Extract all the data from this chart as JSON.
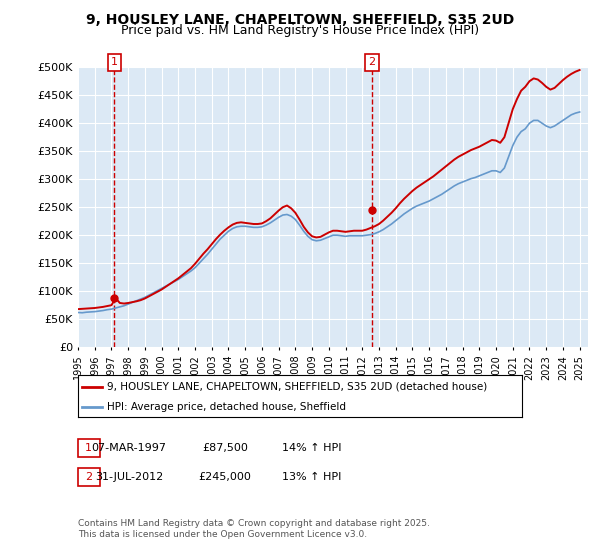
{
  "title_line1": "9, HOUSLEY LANE, CHAPELTOWN, SHEFFIELD, S35 2UD",
  "title_line2": "Price paid vs. HM Land Registry's House Price Index (HPI)",
  "bg_color": "#dce9f5",
  "plot_bg_color": "#dce9f5",
  "fig_bg_color": "#ffffff",
  "ylim": [
    0,
    500000
  ],
  "yticks": [
    0,
    50000,
    100000,
    150000,
    200000,
    250000,
    300000,
    350000,
    400000,
    450000,
    500000
  ],
  "ytick_labels": [
    "£0",
    "£50K",
    "£100K",
    "£150K",
    "£200K",
    "£250K",
    "£300K",
    "£350K",
    "£400K",
    "£450K",
    "£500K"
  ],
  "xlim_start": 1995.0,
  "xlim_end": 2025.5,
  "xticks": [
    1995,
    1996,
    1997,
    1998,
    1999,
    2000,
    2001,
    2002,
    2003,
    2004,
    2005,
    2006,
    2007,
    2008,
    2009,
    2010,
    2011,
    2012,
    2013,
    2014,
    2015,
    2016,
    2017,
    2018,
    2019,
    2020,
    2021,
    2022,
    2023,
    2024,
    2025
  ],
  "sale1_x": 1997.18,
  "sale1_y": 87500,
  "sale1_label": "1",
  "sale2_x": 2012.58,
  "sale2_y": 245000,
  "sale2_label": "2",
  "red_line_color": "#cc0000",
  "blue_line_color": "#6699cc",
  "annotation_color": "#cc0000",
  "legend_label_red": "9, HOUSLEY LANE, CHAPELTOWN, SHEFFIELD, S35 2UD (detached house)",
  "legend_label_blue": "HPI: Average price, detached house, Sheffield",
  "table_row1": [
    "1",
    "07-MAR-1997",
    "£87,500",
    "14% ↑ HPI"
  ],
  "table_row2": [
    "2",
    "31-JUL-2012",
    "£245,000",
    "13% ↑ HPI"
  ],
  "footer_text": "Contains HM Land Registry data © Crown copyright and database right 2025.\nThis data is licensed under the Open Government Licence v3.0.",
  "hpi_data_x": [
    1995.0,
    1995.25,
    1995.5,
    1995.75,
    1996.0,
    1996.25,
    1996.5,
    1996.75,
    1997.0,
    1997.25,
    1997.5,
    1997.75,
    1998.0,
    1998.25,
    1998.5,
    1998.75,
    1999.0,
    1999.25,
    1999.5,
    1999.75,
    2000.0,
    2000.25,
    2000.5,
    2000.75,
    2001.0,
    2001.25,
    2001.5,
    2001.75,
    2002.0,
    2002.25,
    2002.5,
    2002.75,
    2003.0,
    2003.25,
    2003.5,
    2003.75,
    2004.0,
    2004.25,
    2004.5,
    2004.75,
    2005.0,
    2005.25,
    2005.5,
    2005.75,
    2006.0,
    2006.25,
    2006.5,
    2006.75,
    2007.0,
    2007.25,
    2007.5,
    2007.75,
    2008.0,
    2008.25,
    2008.5,
    2008.75,
    2009.0,
    2009.25,
    2009.5,
    2009.75,
    2010.0,
    2010.25,
    2010.5,
    2010.75,
    2011.0,
    2011.25,
    2011.5,
    2011.75,
    2012.0,
    2012.25,
    2012.5,
    2012.75,
    2013.0,
    2013.25,
    2013.5,
    2013.75,
    2014.0,
    2014.25,
    2014.5,
    2014.75,
    2015.0,
    2015.25,
    2015.5,
    2015.75,
    2016.0,
    2016.25,
    2016.5,
    2016.75,
    2017.0,
    2017.25,
    2017.5,
    2017.75,
    2018.0,
    2018.25,
    2018.5,
    2018.75,
    2019.0,
    2019.25,
    2019.5,
    2019.75,
    2020.0,
    2020.25,
    2020.5,
    2020.75,
    2021.0,
    2021.25,
    2021.5,
    2021.75,
    2022.0,
    2022.25,
    2022.5,
    2022.75,
    2023.0,
    2023.25,
    2023.5,
    2023.75,
    2024.0,
    2024.25,
    2024.5,
    2024.75,
    2025.0
  ],
  "hpi_data_y": [
    62000,
    61500,
    62500,
    63000,
    63500,
    64500,
    65500,
    67000,
    68000,
    70000,
    72000,
    74000,
    77000,
    80000,
    83000,
    86000,
    89000,
    93000,
    97000,
    101000,
    105000,
    109000,
    113000,
    117000,
    121000,
    126000,
    131000,
    136000,
    142000,
    150000,
    158000,
    166000,
    175000,
    184000,
    193000,
    200000,
    207000,
    212000,
    215000,
    216000,
    216000,
    215000,
    214000,
    214000,
    215000,
    218000,
    222000,
    227000,
    232000,
    236000,
    237000,
    234000,
    228000,
    218000,
    207000,
    198000,
    192000,
    190000,
    191000,
    194000,
    197000,
    200000,
    200000,
    199000,
    198000,
    199000,
    199000,
    199000,
    199000,
    200000,
    201000,
    203000,
    206000,
    210000,
    215000,
    220000,
    226000,
    232000,
    238000,
    243000,
    248000,
    252000,
    255000,
    258000,
    261000,
    265000,
    269000,
    273000,
    278000,
    283000,
    288000,
    292000,
    295000,
    298000,
    301000,
    303000,
    306000,
    309000,
    312000,
    315000,
    315000,
    312000,
    320000,
    340000,
    360000,
    375000,
    385000,
    390000,
    400000,
    405000,
    405000,
    400000,
    395000,
    392000,
    395000,
    400000,
    405000,
    410000,
    415000,
    418000,
    420000
  ],
  "price_data_x": [
    1995.0,
    1995.25,
    1995.5,
    1995.75,
    1996.0,
    1996.25,
    1996.5,
    1996.75,
    1997.0,
    1997.25,
    1997.5,
    1997.75,
    1998.0,
    1998.25,
    1998.5,
    1998.75,
    1999.0,
    1999.25,
    1999.5,
    1999.75,
    2000.0,
    2000.25,
    2000.5,
    2000.75,
    2001.0,
    2001.25,
    2001.5,
    2001.75,
    2002.0,
    2002.25,
    2002.5,
    2002.75,
    2003.0,
    2003.25,
    2003.5,
    2003.75,
    2004.0,
    2004.25,
    2004.5,
    2004.75,
    2005.0,
    2005.25,
    2005.5,
    2005.75,
    2006.0,
    2006.25,
    2006.5,
    2006.75,
    2007.0,
    2007.25,
    2007.5,
    2007.75,
    2008.0,
    2008.25,
    2008.5,
    2008.75,
    2009.0,
    2009.25,
    2009.5,
    2009.75,
    2010.0,
    2010.25,
    2010.5,
    2010.75,
    2011.0,
    2011.25,
    2011.5,
    2011.75,
    2012.0,
    2012.25,
    2012.5,
    2012.75,
    2013.0,
    2013.25,
    2013.5,
    2013.75,
    2014.0,
    2014.25,
    2014.5,
    2014.75,
    2015.0,
    2015.25,
    2015.5,
    2015.75,
    2016.0,
    2016.25,
    2016.5,
    2016.75,
    2017.0,
    2017.25,
    2017.5,
    2017.75,
    2018.0,
    2018.25,
    2018.5,
    2018.75,
    2019.0,
    2019.25,
    2019.5,
    2019.75,
    2020.0,
    2020.25,
    2020.5,
    2020.75,
    2021.0,
    2021.25,
    2021.5,
    2021.75,
    2022.0,
    2022.25,
    2022.5,
    2022.75,
    2023.0,
    2023.25,
    2023.5,
    2023.75,
    2024.0,
    2024.25,
    2024.5,
    2024.75,
    2025.0
  ],
  "price_data_y": [
    68000,
    68500,
    69000,
    69500,
    70000,
    71000,
    72000,
    73500,
    75000,
    87500,
    79000,
    78000,
    79000,
    80500,
    82000,
    84000,
    87000,
    91000,
    95000,
    99000,
    103000,
    108000,
    113000,
    118000,
    123000,
    129000,
    135000,
    141000,
    149000,
    158000,
    167000,
    175000,
    184000,
    193000,
    201000,
    208000,
    214000,
    219000,
    222000,
    223000,
    222000,
    221000,
    220000,
    220000,
    221000,
    225000,
    230000,
    237000,
    244000,
    250000,
    253000,
    248000,
    240000,
    228000,
    215000,
    205000,
    198000,
    196000,
    197000,
    201000,
    205000,
    208000,
    208000,
    207000,
    206000,
    207000,
    208000,
    208000,
    208000,
    210000,
    213000,
    216000,
    220000,
    226000,
    233000,
    240000,
    248000,
    257000,
    265000,
    272000,
    279000,
    285000,
    290000,
    295000,
    300000,
    305000,
    311000,
    317000,
    323000,
    329000,
    335000,
    340000,
    344000,
    348000,
    352000,
    355000,
    358000,
    362000,
    366000,
    370000,
    369000,
    365000,
    375000,
    400000,
    425000,
    443000,
    458000,
    465000,
    475000,
    480000,
    478000,
    472000,
    465000,
    460000,
    463000,
    470000,
    477000,
    483000,
    488000,
    492000,
    495000
  ]
}
